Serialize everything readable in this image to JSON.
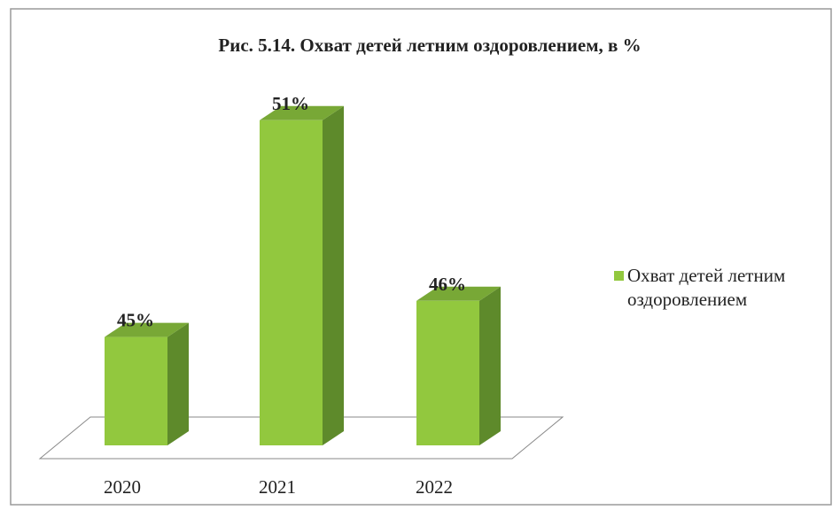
{
  "chart_data": {
    "type": "bar3d",
    "title": "Рис. 5.14. Охват детей летним оздоровлением, в %",
    "categories": [
      "2020",
      "2021",
      "2022"
    ],
    "series": [
      {
        "name": "Охват детей летним оздоровлением",
        "color": "#92c83e",
        "values": [
          45,
          51,
          46
        ],
        "value_labels": [
          "45%",
          "51%",
          "46%"
        ]
      }
    ],
    "ylim": [
      42,
      52
    ],
    "legend": "right"
  }
}
